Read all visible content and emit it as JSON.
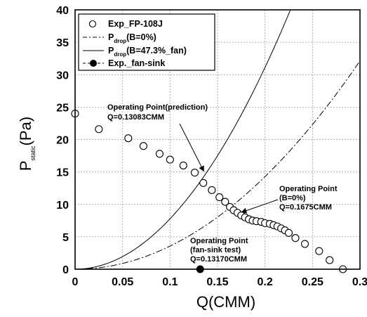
{
  "chart_data": {
    "type": "line",
    "xlabel": "Q(CMM)",
    "ylabel_main": "P",
    "ylabel_sub": "static",
    "ylabel_unit": "(Pa)",
    "xlim": [
      0,
      0.3
    ],
    "ylim": [
      0,
      40
    ],
    "x_ticks": [
      0,
      0.05,
      0.1,
      0.15,
      0.2,
      0.25,
      0.3
    ],
    "x_tick_labels": [
      "0",
      "0.05",
      "0.1",
      "0.15",
      "0.2",
      "0.25",
      "0.3"
    ],
    "y_ticks": [
      0,
      5,
      10,
      15,
      20,
      25,
      30,
      35,
      40
    ],
    "y_tick_labels": [
      "0",
      "5",
      "10",
      "15",
      "20",
      "25",
      "30",
      "35",
      "40"
    ],
    "grid": true,
    "legend_position": "top-left",
    "series": [
      {
        "name": "Exp_FP-108J",
        "kind": "scatter-open-circle",
        "x": [
          0.0,
          0.025,
          0.056,
          0.072,
          0.089,
          0.1,
          0.114,
          0.126,
          0.135,
          0.144,
          0.152,
          0.158,
          0.163,
          0.167,
          0.171,
          0.175,
          0.179,
          0.183,
          0.187,
          0.191,
          0.196,
          0.2,
          0.205,
          0.209,
          0.213,
          0.217,
          0.221,
          0.225,
          0.232,
          0.242,
          0.257,
          0.268,
          0.282
        ],
        "y": [
          24.0,
          21.6,
          20.2,
          19.0,
          17.8,
          16.9,
          16.0,
          14.9,
          13.3,
          12.2,
          11.1,
          10.4,
          9.6,
          9.1,
          8.7,
          8.3,
          8.0,
          7.7,
          7.5,
          7.4,
          7.3,
          7.1,
          7.0,
          6.8,
          6.6,
          6.3,
          6.0,
          5.6,
          4.8,
          3.9,
          2.8,
          1.4,
          0.0
        ]
      },
      {
        "name_main": "P",
        "name_sub": "drop",
        "name_rest": "(B=0%)",
        "kind": "dash-dot-curve",
        "coefficient": 357.0,
        "exponent": 2
      },
      {
        "name_main": "P",
        "name_sub": "drop",
        "name_rest": "(B=47.3%_fan)",
        "kind": "solid-curve",
        "coefficient": 778.0,
        "exponent": 2
      },
      {
        "name": "Exp._fan-sink",
        "kind": "scatter-filled-circle",
        "x": [
          0.1317
        ],
        "y": [
          0.0
        ]
      }
    ],
    "annotations": [
      {
        "lines": [
          "Operating Point(prediction)",
          "Q=0.13083CMM"
        ],
        "target_x": 0.131,
        "target_y": 14.7
      },
      {
        "lines": [
          "Operating Point",
          "(B=0%)",
          "Q=0.1675CMM"
        ],
        "target_x": 0.168,
        "target_y": 9.0
      },
      {
        "lines": [
          "Operating Point",
          "(fan-sink test)",
          "Q=0.13170CMM"
        ],
        "target_x": null,
        "target_y": null
      }
    ]
  }
}
